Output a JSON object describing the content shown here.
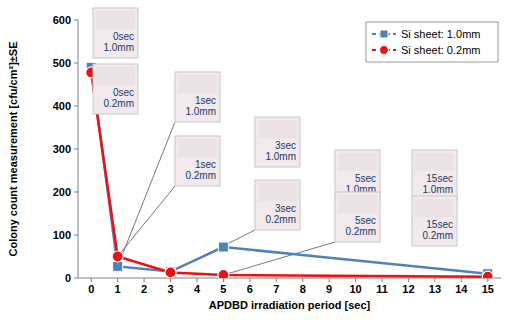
{
  "chart_data": {
    "type": "line",
    "x_label": "APDBD irradiation period [sec]",
    "y_label": "Colony count measurement [cfu/cm²]±SE",
    "x": [
      0,
      1,
      3,
      5,
      15
    ],
    "xlim": [
      -0.5,
      15.5
    ],
    "xticks": [
      0,
      1,
      2,
      3,
      4,
      5,
      6,
      7,
      8,
      9,
      10,
      11,
      12,
      13,
      14,
      15
    ],
    "ylim": [
      0,
      600
    ],
    "yticks": [
      0,
      100,
      200,
      300,
      400,
      500,
      600
    ],
    "grid": false,
    "legend": "upper right",
    "series": [
      {
        "name": "Si sheet: 1.0mm",
        "color": "#4f81bd",
        "marker": "square",
        "line_style": "solid",
        "values": [
          490,
          27,
          15,
          72,
          10
        ]
      },
      {
        "name": "Si sheet: 0.2mm",
        "color": "#ee1111",
        "marker": "circle",
        "line_style": "solid",
        "values": [
          478,
          50,
          13,
          7,
          3
        ]
      }
    ],
    "annotations": [
      {
        "text": [
          "0sec",
          "1.0mm"
        ]
      },
      {
        "text": [
          "0sec",
          "0.2mm"
        ]
      },
      {
        "text": [
          "1sec",
          "1.0mm"
        ]
      },
      {
        "text": [
          "1sec",
          "0.2mm"
        ]
      },
      {
        "text": [
          "3sec",
          "1.0mm"
        ]
      },
      {
        "text": [
          "3sec",
          "0.2mm"
        ]
      },
      {
        "text": [
          "5sec",
          "1.0mm"
        ]
      },
      {
        "text": [
          "5sec",
          "0.2mm"
        ]
      },
      {
        "text": [
          "15sec",
          "1.0mm"
        ]
      },
      {
        "text": [
          "15sec",
          "0.2mm"
        ]
      }
    ]
  }
}
